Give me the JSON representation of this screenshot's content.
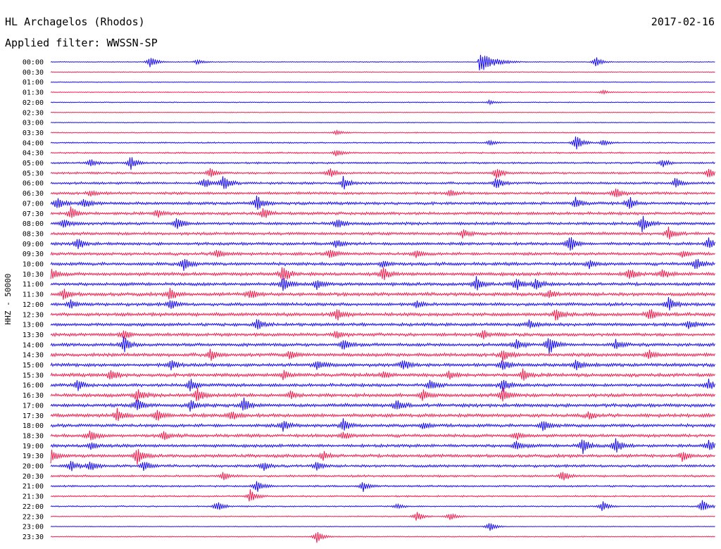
{
  "header": {
    "station": "HL Archagelos (Rhodos)",
    "date": "2017-02-16",
    "filter": "Applied filter: WWSSN-SP"
  },
  "chart_data": {
    "type": "line",
    "title": "HL Archagelos (Rhodos)",
    "ylabel": "HHZ - 50000",
    "colors": {
      "even_trace": "#1a0ef0",
      "odd_trace": "#f02050"
    },
    "traces": [
      {
        "label": "00:00",
        "noise": 0.6,
        "events": [
          {
            "t": 0.15,
            "amp": 10
          },
          {
            "t": 0.22,
            "amp": 4
          },
          {
            "t": 0.645,
            "amp": 16,
            "burst": 1
          },
          {
            "t": 0.82,
            "amp": 8
          }
        ]
      },
      {
        "label": "00:30",
        "noise": 0.6,
        "events": []
      },
      {
        "label": "01:00",
        "noise": 0.6,
        "events": []
      },
      {
        "label": "01:30",
        "noise": 0.7,
        "events": [
          {
            "t": 0.83,
            "amp": 3
          }
        ]
      },
      {
        "label": "02:00",
        "noise": 0.7,
        "events": [
          {
            "t": 0.66,
            "amp": 3
          }
        ]
      },
      {
        "label": "02:30",
        "noise": 0.6,
        "events": []
      },
      {
        "label": "03:00",
        "noise": 0.6,
        "events": []
      },
      {
        "label": "03:30",
        "noise": 0.8,
        "events": [
          {
            "t": 0.43,
            "amp": 4
          }
        ]
      },
      {
        "label": "04:00",
        "noise": 1.0,
        "events": [
          {
            "t": 0.66,
            "amp": 4
          },
          {
            "t": 0.79,
            "amp": 14
          },
          {
            "t": 0.83,
            "amp": 5
          }
        ]
      },
      {
        "label": "04:30",
        "noise": 1.2,
        "events": [
          {
            "t": 0.43,
            "amp": 6
          }
        ]
      },
      {
        "label": "05:00",
        "noise": 1.4,
        "events": [
          {
            "t": 0.06,
            "amp": 6
          },
          {
            "t": 0.12,
            "amp": 10
          },
          {
            "t": 0.92,
            "amp": 6
          }
        ]
      },
      {
        "label": "05:30",
        "noise": 1.6,
        "events": [
          {
            "t": 0.24,
            "amp": 8
          },
          {
            "t": 0.42,
            "amp": 7
          },
          {
            "t": 0.67,
            "amp": 9
          },
          {
            "t": 0.99,
            "amp": 9
          }
        ]
      },
      {
        "label": "06:00",
        "noise": 1.8,
        "events": [
          {
            "t": 0.23,
            "amp": 8
          },
          {
            "t": 0.26,
            "amp": 12
          },
          {
            "t": 0.44,
            "amp": 10
          },
          {
            "t": 0.67,
            "amp": 10
          },
          {
            "t": 0.94,
            "amp": 8
          }
        ]
      },
      {
        "label": "06:30",
        "noise": 2.0,
        "events": [
          {
            "t": 0.06,
            "amp": 5
          },
          {
            "t": 0.6,
            "amp": 5
          },
          {
            "t": 0.85,
            "amp": 9
          }
        ]
      },
      {
        "label": "07:00",
        "noise": 2.2,
        "events": [
          {
            "t": 0.01,
            "amp": 10
          },
          {
            "t": 0.05,
            "amp": 8
          },
          {
            "t": 0.31,
            "amp": 12
          },
          {
            "t": 0.79,
            "amp": 8
          },
          {
            "t": 0.87,
            "amp": 10
          }
        ]
      },
      {
        "label": "07:30",
        "noise": 2.2,
        "events": [
          {
            "t": 0.03,
            "amp": 10
          },
          {
            "t": 0.16,
            "amp": 6
          },
          {
            "t": 0.32,
            "amp": 8
          }
        ]
      },
      {
        "label": "08:00",
        "noise": 2.2,
        "events": [
          {
            "t": 0.02,
            "amp": 8
          },
          {
            "t": 0.19,
            "amp": 10
          },
          {
            "t": 0.43,
            "amp": 8
          },
          {
            "t": 0.89,
            "amp": 12
          }
        ]
      },
      {
        "label": "08:30",
        "noise": 2.2,
        "events": [
          {
            "t": 0.62,
            "amp": 6
          },
          {
            "t": 0.93,
            "amp": 10
          }
        ]
      },
      {
        "label": "09:00",
        "noise": 2.2,
        "events": [
          {
            "t": 0.04,
            "amp": 9
          },
          {
            "t": 0.43,
            "amp": 6
          },
          {
            "t": 0.78,
            "amp": 14
          },
          {
            "t": 0.99,
            "amp": 10
          }
        ]
      },
      {
        "label": "09:30",
        "noise": 2.2,
        "events": [
          {
            "t": 0.25,
            "amp": 8
          },
          {
            "t": 0.42,
            "amp": 8
          },
          {
            "t": 0.55,
            "amp": 6
          },
          {
            "t": 0.95,
            "amp": 6
          }
        ]
      },
      {
        "label": "10:00",
        "noise": 2.4,
        "events": [
          {
            "t": 0.2,
            "amp": 12
          },
          {
            "t": 0.5,
            "amp": 6
          },
          {
            "t": 0.81,
            "amp": 6
          },
          {
            "t": 0.97,
            "amp": 10
          }
        ]
      },
      {
        "label": "10:30",
        "noise": 2.6,
        "events": [
          {
            "t": 0.0,
            "amp": 10
          },
          {
            "t": 0.35,
            "amp": 14
          },
          {
            "t": 0.5,
            "amp": 10
          },
          {
            "t": 0.87,
            "amp": 10
          },
          {
            "t": 0.92,
            "amp": 6
          }
        ]
      },
      {
        "label": "11:00",
        "noise": 2.4,
        "events": [
          {
            "t": 0.35,
            "amp": 12
          },
          {
            "t": 0.4,
            "amp": 8
          },
          {
            "t": 0.64,
            "amp": 10
          },
          {
            "t": 0.7,
            "amp": 10
          },
          {
            "t": 0.73,
            "amp": 8
          }
        ]
      },
      {
        "label": "11:30",
        "noise": 2.6,
        "events": [
          {
            "t": 0.02,
            "amp": 8
          },
          {
            "t": 0.18,
            "amp": 10
          },
          {
            "t": 0.3,
            "amp": 8
          },
          {
            "t": 0.75,
            "amp": 6
          }
        ]
      },
      {
        "label": "12:00",
        "noise": 2.4,
        "events": [
          {
            "t": 0.03,
            "amp": 6
          },
          {
            "t": 0.18,
            "amp": 8
          },
          {
            "t": 0.55,
            "amp": 6
          },
          {
            "t": 0.93,
            "amp": 10
          }
        ]
      },
      {
        "label": "12:30",
        "noise": 2.6,
        "events": [
          {
            "t": 0.43,
            "amp": 10
          },
          {
            "t": 0.76,
            "amp": 10
          },
          {
            "t": 0.9,
            "amp": 10
          }
        ]
      },
      {
        "label": "13:00",
        "noise": 2.4,
        "events": [
          {
            "t": 0.31,
            "amp": 8
          },
          {
            "t": 0.72,
            "amp": 6
          },
          {
            "t": 0.96,
            "amp": 8
          }
        ]
      },
      {
        "label": "13:30",
        "noise": 2.4,
        "events": [
          {
            "t": 0.11,
            "amp": 8
          },
          {
            "t": 0.43,
            "amp": 6
          },
          {
            "t": 0.65,
            "amp": 6
          }
        ]
      },
      {
        "label": "14:00",
        "noise": 2.4,
        "events": [
          {
            "t": 0.11,
            "amp": 12
          },
          {
            "t": 0.44,
            "amp": 8
          },
          {
            "t": 0.7,
            "amp": 8
          },
          {
            "t": 0.75,
            "amp": 14
          },
          {
            "t": 0.85,
            "amp": 6
          }
        ]
      },
      {
        "label": "14:30",
        "noise": 2.6,
        "events": [
          {
            "t": 0.24,
            "amp": 8
          },
          {
            "t": 0.36,
            "amp": 8
          },
          {
            "t": 0.68,
            "amp": 10
          },
          {
            "t": 0.9,
            "amp": 8
          }
        ]
      },
      {
        "label": "15:00",
        "noise": 2.6,
        "events": [
          {
            "t": 0.18,
            "amp": 8
          },
          {
            "t": 0.4,
            "amp": 8
          },
          {
            "t": 0.53,
            "amp": 8
          },
          {
            "t": 0.68,
            "amp": 8
          },
          {
            "t": 0.79,
            "amp": 8
          }
        ]
      },
      {
        "label": "15:30",
        "noise": 2.6,
        "events": [
          {
            "t": 0.09,
            "amp": 8
          },
          {
            "t": 0.35,
            "amp": 6
          },
          {
            "t": 0.5,
            "amp": 6
          },
          {
            "t": 0.6,
            "amp": 6
          },
          {
            "t": 0.71,
            "amp": 8
          }
        ]
      },
      {
        "label": "16:00",
        "noise": 2.4,
        "events": [
          {
            "t": 0.04,
            "amp": 8
          },
          {
            "t": 0.21,
            "amp": 10
          },
          {
            "t": 0.57,
            "amp": 8
          },
          {
            "t": 0.68,
            "amp": 10
          },
          {
            "t": 0.99,
            "amp": 8
          }
        ]
      },
      {
        "label": "16:30",
        "noise": 2.6,
        "events": [
          {
            "t": 0.13,
            "amp": 10
          },
          {
            "t": 0.22,
            "amp": 10
          },
          {
            "t": 0.36,
            "amp": 6
          },
          {
            "t": 0.56,
            "amp": 8
          },
          {
            "t": 0.68,
            "amp": 12
          }
        ]
      },
      {
        "label": "17:00",
        "noise": 2.6,
        "events": [
          {
            "t": 0.13,
            "amp": 10
          },
          {
            "t": 0.21,
            "amp": 8
          },
          {
            "t": 0.29,
            "amp": 10
          },
          {
            "t": 0.52,
            "amp": 10
          }
        ]
      },
      {
        "label": "17:30",
        "noise": 2.6,
        "events": [
          {
            "t": 0.1,
            "amp": 10
          },
          {
            "t": 0.16,
            "amp": 8
          },
          {
            "t": 0.27,
            "amp": 8
          },
          {
            "t": 0.81,
            "amp": 6
          }
        ]
      },
      {
        "label": "18:00",
        "noise": 2.4,
        "events": [
          {
            "t": 0.35,
            "amp": 8
          },
          {
            "t": 0.44,
            "amp": 10
          },
          {
            "t": 0.56,
            "amp": 6
          },
          {
            "t": 0.74,
            "amp": 8
          }
        ]
      },
      {
        "label": "18:30",
        "noise": 2.4,
        "events": [
          {
            "t": 0.06,
            "amp": 8
          },
          {
            "t": 0.17,
            "amp": 6
          },
          {
            "t": 0.44,
            "amp": 6
          },
          {
            "t": 0.7,
            "amp": 6
          }
        ]
      },
      {
        "label": "19:00",
        "noise": 2.4,
        "events": [
          {
            "t": 0.06,
            "amp": 6
          },
          {
            "t": 0.7,
            "amp": 8
          },
          {
            "t": 0.8,
            "amp": 12
          },
          {
            "t": 0.85,
            "amp": 12
          },
          {
            "t": 0.99,
            "amp": 8
          }
        ]
      },
      {
        "label": "19:30",
        "noise": 2.4,
        "events": [
          {
            "t": 0.0,
            "amp": 10
          },
          {
            "t": 0.13,
            "amp": 12
          },
          {
            "t": 0.41,
            "amp": 6
          },
          {
            "t": 0.95,
            "amp": 8
          }
        ]
      },
      {
        "label": "20:00",
        "noise": 2.0,
        "events": [
          {
            "t": 0.03,
            "amp": 8
          },
          {
            "t": 0.06,
            "amp": 8
          },
          {
            "t": 0.14,
            "amp": 8
          },
          {
            "t": 0.32,
            "amp": 6
          },
          {
            "t": 0.4,
            "amp": 6
          }
        ]
      },
      {
        "label": "20:30",
        "noise": 1.6,
        "events": [
          {
            "t": 0.26,
            "amp": 6
          },
          {
            "t": 0.77,
            "amp": 8
          }
        ]
      },
      {
        "label": "21:00",
        "noise": 1.4,
        "events": [
          {
            "t": 0.31,
            "amp": 10
          },
          {
            "t": 0.47,
            "amp": 8
          }
        ]
      },
      {
        "label": "21:30",
        "noise": 1.2,
        "events": [
          {
            "t": 0.3,
            "amp": 10
          }
        ]
      },
      {
        "label": "22:00",
        "noise": 1.0,
        "events": [
          {
            "t": 0.25,
            "amp": 8
          },
          {
            "t": 0.52,
            "amp": 4
          },
          {
            "t": 0.83,
            "amp": 8
          },
          {
            "t": 0.98,
            "amp": 10
          }
        ]
      },
      {
        "label": "22:30",
        "noise": 0.8,
        "events": [
          {
            "t": 0.55,
            "amp": 8
          },
          {
            "t": 0.6,
            "amp": 6
          }
        ]
      },
      {
        "label": "23:00",
        "noise": 0.6,
        "events": [
          {
            "t": 0.66,
            "amp": 8
          }
        ]
      },
      {
        "label": "23:30",
        "noise": 0.8,
        "events": [
          {
            "t": 0.4,
            "amp": 10
          }
        ]
      }
    ]
  }
}
